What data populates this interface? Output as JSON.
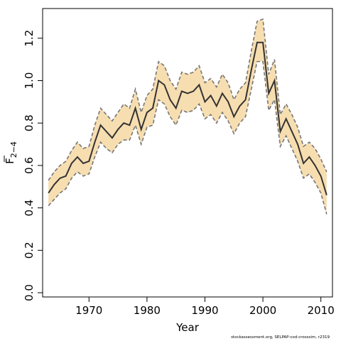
{
  "chart_data": {
    "type": "line",
    "title": "",
    "xlabel": "Year",
    "ylabel_main": "F",
    "ylabel_sub": "2−4",
    "xlim": [
      1962,
      2012
    ],
    "ylim": [
      -0.02,
      1.34
    ],
    "xticks": [
      1970,
      1980,
      1990,
      2000,
      2010
    ],
    "xtick_labels": [
      "1970",
      "1980",
      "1990",
      "2000",
      "2010"
    ],
    "yticks": [
      0.0,
      0.2,
      0.4,
      0.6,
      0.8,
      1.0,
      1.2
    ],
    "ytick_labels": [
      "0.0",
      "0.2",
      "0.4",
      "0.6",
      "0.8",
      "1.0",
      "1.2"
    ],
    "grid": false,
    "x": [
      1963,
      1964,
      1965,
      1966,
      1967,
      1968,
      1969,
      1970,
      1971,
      1972,
      1973,
      1974,
      1975,
      1976,
      1977,
      1978,
      1979,
      1980,
      1981,
      1982,
      1983,
      1984,
      1985,
      1986,
      1987,
      1988,
      1989,
      1990,
      1991,
      1992,
      1993,
      1994,
      1995,
      1996,
      1997,
      1998,
      1999,
      2000,
      2001,
      2002,
      2003,
      2004,
      2005,
      2006,
      2007,
      2008,
      2009,
      2010,
      2011
    ],
    "series": [
      {
        "values": [
          0.47,
          0.51,
          0.54,
          0.55,
          0.61,
          0.64,
          0.61,
          0.62,
          0.71,
          0.79,
          0.76,
          0.73,
          0.77,
          0.8,
          0.79,
          0.87,
          0.77,
          0.85,
          0.87,
          1.0,
          0.98,
          0.91,
          0.87,
          0.95,
          0.94,
          0.95,
          0.98,
          0.9,
          0.93,
          0.88,
          0.94,
          0.9,
          0.83,
          0.88,
          0.91,
          1.05,
          1.18,
          1.18,
          0.94,
          1.0,
          0.76,
          0.82,
          0.76,
          0.7,
          0.61,
          0.64,
          0.6,
          0.55,
          0.46
        ],
        "lower": [
          0.41,
          0.44,
          0.47,
          0.49,
          0.54,
          0.57,
          0.55,
          0.56,
          0.64,
          0.71,
          0.68,
          0.66,
          0.7,
          0.72,
          0.72,
          0.79,
          0.7,
          0.78,
          0.79,
          0.91,
          0.89,
          0.83,
          0.79,
          0.86,
          0.85,
          0.86,
          0.89,
          0.82,
          0.84,
          0.8,
          0.85,
          0.81,
          0.75,
          0.8,
          0.83,
          0.96,
          1.09,
          1.09,
          0.86,
          0.91,
          0.69,
          0.74,
          0.68,
          0.62,
          0.54,
          0.56,
          0.52,
          0.47,
          0.37
        ],
        "upper": [
          0.53,
          0.57,
          0.6,
          0.62,
          0.67,
          0.71,
          0.68,
          0.69,
          0.79,
          0.87,
          0.84,
          0.81,
          0.85,
          0.89,
          0.87,
          0.96,
          0.85,
          0.93,
          0.96,
          1.09,
          1.07,
          1.0,
          0.96,
          1.04,
          1.03,
          1.04,
          1.07,
          0.99,
          1.01,
          0.97,
          1.03,
          0.99,
          0.91,
          0.96,
          0.99,
          1.14,
          1.28,
          1.29,
          1.03,
          1.1,
          0.84,
          0.89,
          0.84,
          0.78,
          0.69,
          0.71,
          0.68,
          0.63,
          0.57
        ]
      }
    ],
    "colors": {
      "band_fill": "#f7deb0",
      "band_edge": "#777777",
      "line": "#333333",
      "axis": "#000000"
    }
  },
  "footer": {
    "note": "stockassessment.org, SELPAP-cod-crosssim, r2319"
  }
}
